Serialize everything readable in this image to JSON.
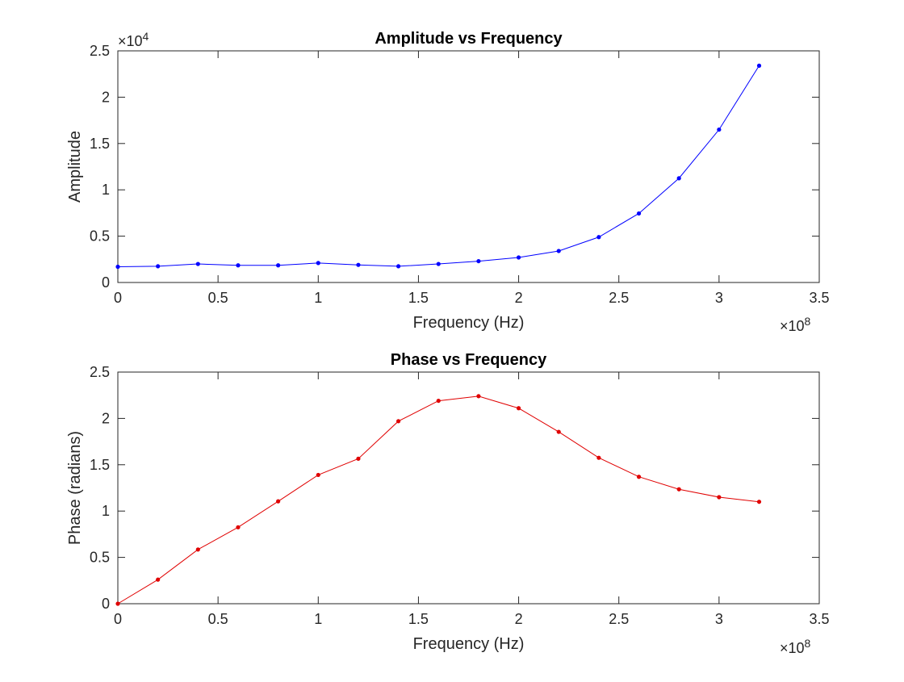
{
  "chart_data": [
    {
      "type": "line",
      "title": "Amplitude vs Frequency",
      "xlabel": "Frequency (Hz)",
      "ylabel": "Amplitude",
      "x_exponent_label": "×10",
      "x_exponent": "8",
      "y_exponent_label": "×10",
      "y_exponent": "4",
      "xlim": [
        0,
        3.5
      ],
      "ylim": [
        0,
        2.5
      ],
      "xticks": [
        "0",
        "0.5",
        "1",
        "1.5",
        "2",
        "2.5",
        "3",
        "3.5"
      ],
      "yticks": [
        "0",
        "0.5",
        "1",
        "1.5",
        "2",
        "2.5"
      ],
      "grid": false,
      "series": [
        {
          "color": "#0000ff",
          "marker": "dot",
          "x": [
            0,
            0.2,
            0.4,
            0.6,
            0.8,
            1.0,
            1.2,
            1.4,
            1.6,
            1.8,
            2.0,
            2.2,
            2.4,
            2.6,
            2.8,
            3.0,
            3.2
          ],
          "y": [
            0.17,
            0.175,
            0.2,
            0.185,
            0.185,
            0.21,
            0.19,
            0.175,
            0.2,
            0.23,
            0.27,
            0.34,
            0.49,
            0.745,
            1.125,
            1.65,
            2.34
          ]
        }
      ]
    },
    {
      "type": "line",
      "title": "Phase vs Frequency",
      "xlabel": "Frequency (Hz)",
      "ylabel": "Phase (radians)",
      "x_exponent_label": "×10",
      "x_exponent": "8",
      "xlim": [
        0,
        3.5
      ],
      "ylim": [
        0,
        2.5
      ],
      "xticks": [
        "0",
        "0.5",
        "1",
        "1.5",
        "2",
        "2.5",
        "3",
        "3.5"
      ],
      "yticks": [
        "0",
        "0.5",
        "1",
        "1.5",
        "2",
        "2.5"
      ],
      "grid": false,
      "series": [
        {
          "color": "#e00000",
          "marker": "dot",
          "x": [
            0,
            0.2,
            0.4,
            0.6,
            0.8,
            1.0,
            1.2,
            1.4,
            1.6,
            1.8,
            2.0,
            2.2,
            2.4,
            2.6,
            2.8,
            3.0,
            3.2
          ],
          "y": [
            0.0,
            0.26,
            0.585,
            0.825,
            1.105,
            1.39,
            1.565,
            1.97,
            2.19,
            2.24,
            2.11,
            1.855,
            1.575,
            1.37,
            1.235,
            1.15,
            1.1
          ]
        }
      ]
    }
  ]
}
